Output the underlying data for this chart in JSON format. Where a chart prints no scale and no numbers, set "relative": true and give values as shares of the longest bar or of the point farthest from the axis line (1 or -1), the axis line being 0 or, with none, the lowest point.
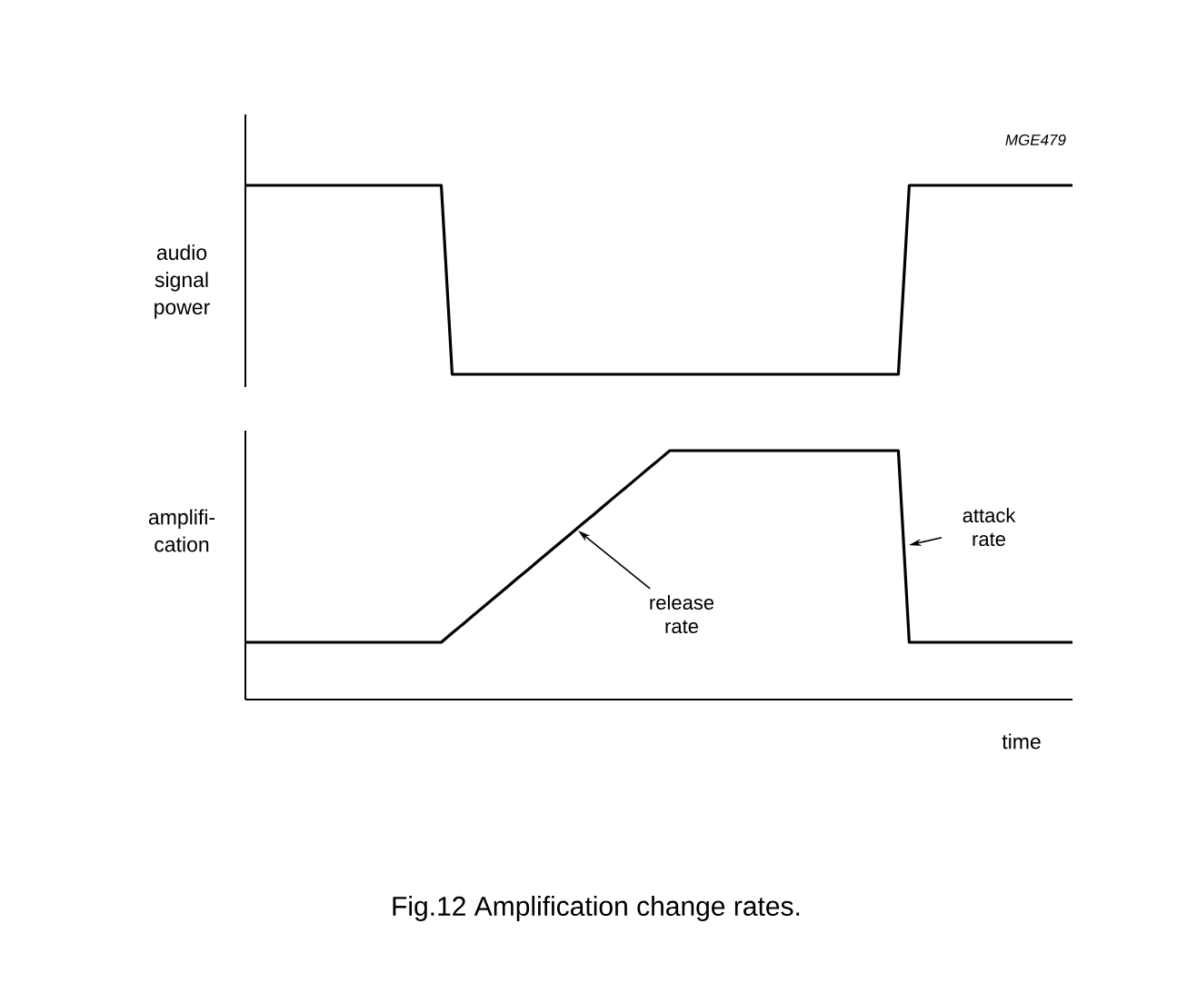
{
  "chart_data": [
    {
      "type": "line",
      "relative": true,
      "ylabel": "audio signal power",
      "color": "#000000",
      "annotations": [
        "MGE479"
      ],
      "categories": [
        null,
        null,
        null,
        null,
        null,
        null,
        null,
        null,
        null,
        null,
        null,
        null,
        null,
        null,
        null,
        null,
        null,
        null,
        null,
        null,
        null,
        null,
        null,
        null,
        null,
        null,
        null,
        null,
        null,
        null,
        null,
        null,
        null,
        null,
        null,
        null,
        null,
        null,
        null,
        null,
        null,
        null,
        null,
        null,
        null,
        null,
        null,
        null,
        null,
        null,
        null,
        null,
        null,
        null,
        null,
        null,
        null,
        null,
        null,
        null,
        null,
        null,
        null,
        null,
        null,
        null,
        null,
        null,
        null,
        null,
        null,
        null,
        null,
        null,
        null,
        null,
        null
      ],
      "values": [
        1,
        1,
        1,
        1,
        1,
        1,
        1,
        1,
        1,
        1,
        1,
        1,
        1,
        1,
        1,
        1,
        1,
        1,
        1,
        0,
        0,
        0,
        0,
        0,
        0,
        0,
        0,
        0,
        0,
        0,
        0,
        0,
        0,
        0,
        0,
        0,
        0,
        0,
        0,
        0,
        0,
        0,
        0,
        0,
        0,
        0,
        0,
        0,
        0,
        0,
        0,
        0,
        0,
        0,
        0,
        0,
        0,
        0,
        0,
        0,
        0,
        1,
        1,
        1,
        1,
        1,
        1,
        1,
        1,
        1,
        1,
        1,
        1,
        1,
        1,
        1,
        1
      ]
    },
    {
      "type": "line",
      "relative": true,
      "ylabel": "amplifi-cation",
      "xlabel": "time",
      "color": "#000000",
      "annotations": [
        "release rate",
        "attack rate",
        "Fig.12  Amplification change rates."
      ],
      "categories": [
        null,
        null,
        null,
        null,
        null,
        null,
        null,
        null,
        null,
        null,
        null,
        null,
        null,
        null,
        null,
        null,
        null,
        null,
        null,
        null,
        null,
        null,
        null,
        null,
        null,
        null,
        null,
        null,
        null,
        null,
        null,
        null,
        null,
        null,
        null,
        null,
        null,
        null,
        null,
        null,
        null,
        null,
        null,
        null,
        null,
        null,
        null,
        null,
        null,
        null,
        null,
        null,
        null,
        null,
        null,
        null,
        null,
        null,
        null,
        null,
        null,
        null,
        null,
        null,
        null,
        null,
        null,
        null,
        null,
        null,
        null,
        null,
        null,
        null,
        null,
        null,
        null
      ],
      "values": [
        0.23,
        0.23,
        0.23,
        0.23,
        0.23,
        0.23,
        0.23,
        0.23,
        0.23,
        0.23,
        0.23,
        0.23,
        0.23,
        0.23,
        0.23,
        0.23,
        0.23,
        0.23,
        0.23,
        0.267,
        0.303,
        0.34,
        0.377,
        0.413,
        0.45,
        0.487,
        0.523,
        0.56,
        0.597,
        0.633,
        0.67,
        0.707,
        0.743,
        0.78,
        0.817,
        0.853,
        0.89,
        0.927,
        0.963,
        1,
        1,
        1,
        1,
        1,
        1,
        1,
        1,
        1,
        1,
        1,
        1,
        1,
        1,
        1,
        1,
        1,
        1,
        1,
        1,
        1,
        1,
        0.23,
        0.23,
        0.23,
        0.23,
        0.23,
        0.23,
        0.23,
        0.23,
        0.23,
        0.23,
        0.23,
        0.23,
        0.23,
        0.23,
        0.23,
        0.23
      ]
    }
  ]
}
